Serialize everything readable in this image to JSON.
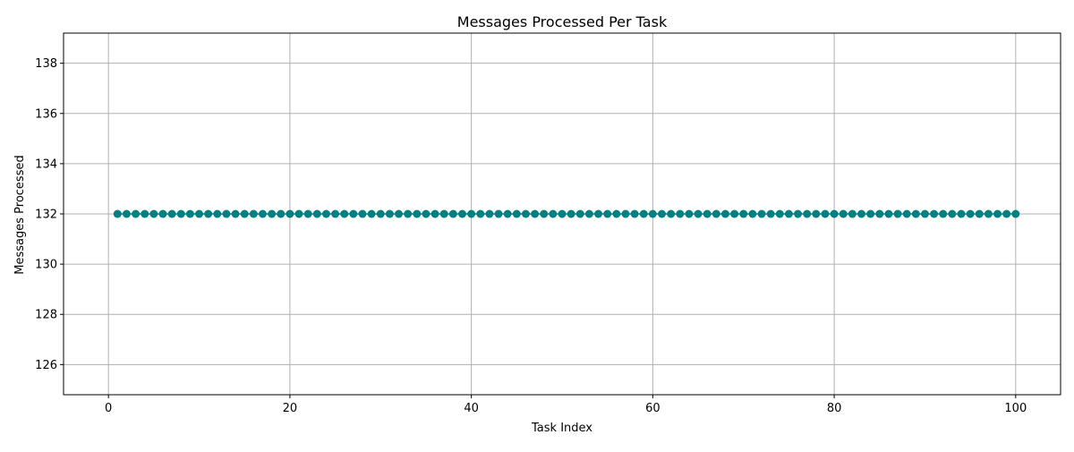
{
  "chart_data": {
    "type": "line",
    "title": "Messages Processed Per Task",
    "xlabel": "Task Index",
    "ylabel": "Messages Processed",
    "xlim": [
      -4.95,
      104.95
    ],
    "ylim": [
      124.8,
      139.2
    ],
    "xticks": [
      0,
      20,
      40,
      60,
      80,
      100
    ],
    "yticks": [
      126,
      128,
      130,
      132,
      134,
      136,
      138
    ],
    "grid": true,
    "marker": "circle",
    "color": "#008080",
    "series": [
      {
        "x": [
          1,
          2,
          3,
          4,
          5,
          6,
          7,
          8,
          9,
          10,
          11,
          12,
          13,
          14,
          15,
          16,
          17,
          18,
          19,
          20,
          21,
          22,
          23,
          24,
          25,
          26,
          27,
          28,
          29,
          30,
          31,
          32,
          33,
          34,
          35,
          36,
          37,
          38,
          39,
          40,
          41,
          42,
          43,
          44,
          45,
          46,
          47,
          48,
          49,
          50,
          51,
          52,
          53,
          54,
          55,
          56,
          57,
          58,
          59,
          60,
          61,
          62,
          63,
          64,
          65,
          66,
          67,
          68,
          69,
          70,
          71,
          72,
          73,
          74,
          75,
          76,
          77,
          78,
          79,
          80,
          81,
          82,
          83,
          84,
          85,
          86,
          87,
          88,
          89,
          90,
          91,
          92,
          93,
          94,
          95,
          96,
          97,
          98,
          99,
          100
        ],
        "y": [
          132,
          132,
          132,
          132,
          132,
          132,
          132,
          132,
          132,
          132,
          132,
          132,
          132,
          132,
          132,
          132,
          132,
          132,
          132,
          132,
          132,
          132,
          132,
          132,
          132,
          132,
          132,
          132,
          132,
          132,
          132,
          132,
          132,
          132,
          132,
          132,
          132,
          132,
          132,
          132,
          132,
          132,
          132,
          132,
          132,
          132,
          132,
          132,
          132,
          132,
          132,
          132,
          132,
          132,
          132,
          132,
          132,
          132,
          132,
          132,
          132,
          132,
          132,
          132,
          132,
          132,
          132,
          132,
          132,
          132,
          132,
          132,
          132,
          132,
          132,
          132,
          132,
          132,
          132,
          132,
          132,
          132,
          132,
          132,
          132,
          132,
          132,
          132,
          132,
          132,
          132,
          132,
          132,
          132,
          132,
          132,
          132,
          132,
          132,
          132
        ]
      }
    ]
  }
}
